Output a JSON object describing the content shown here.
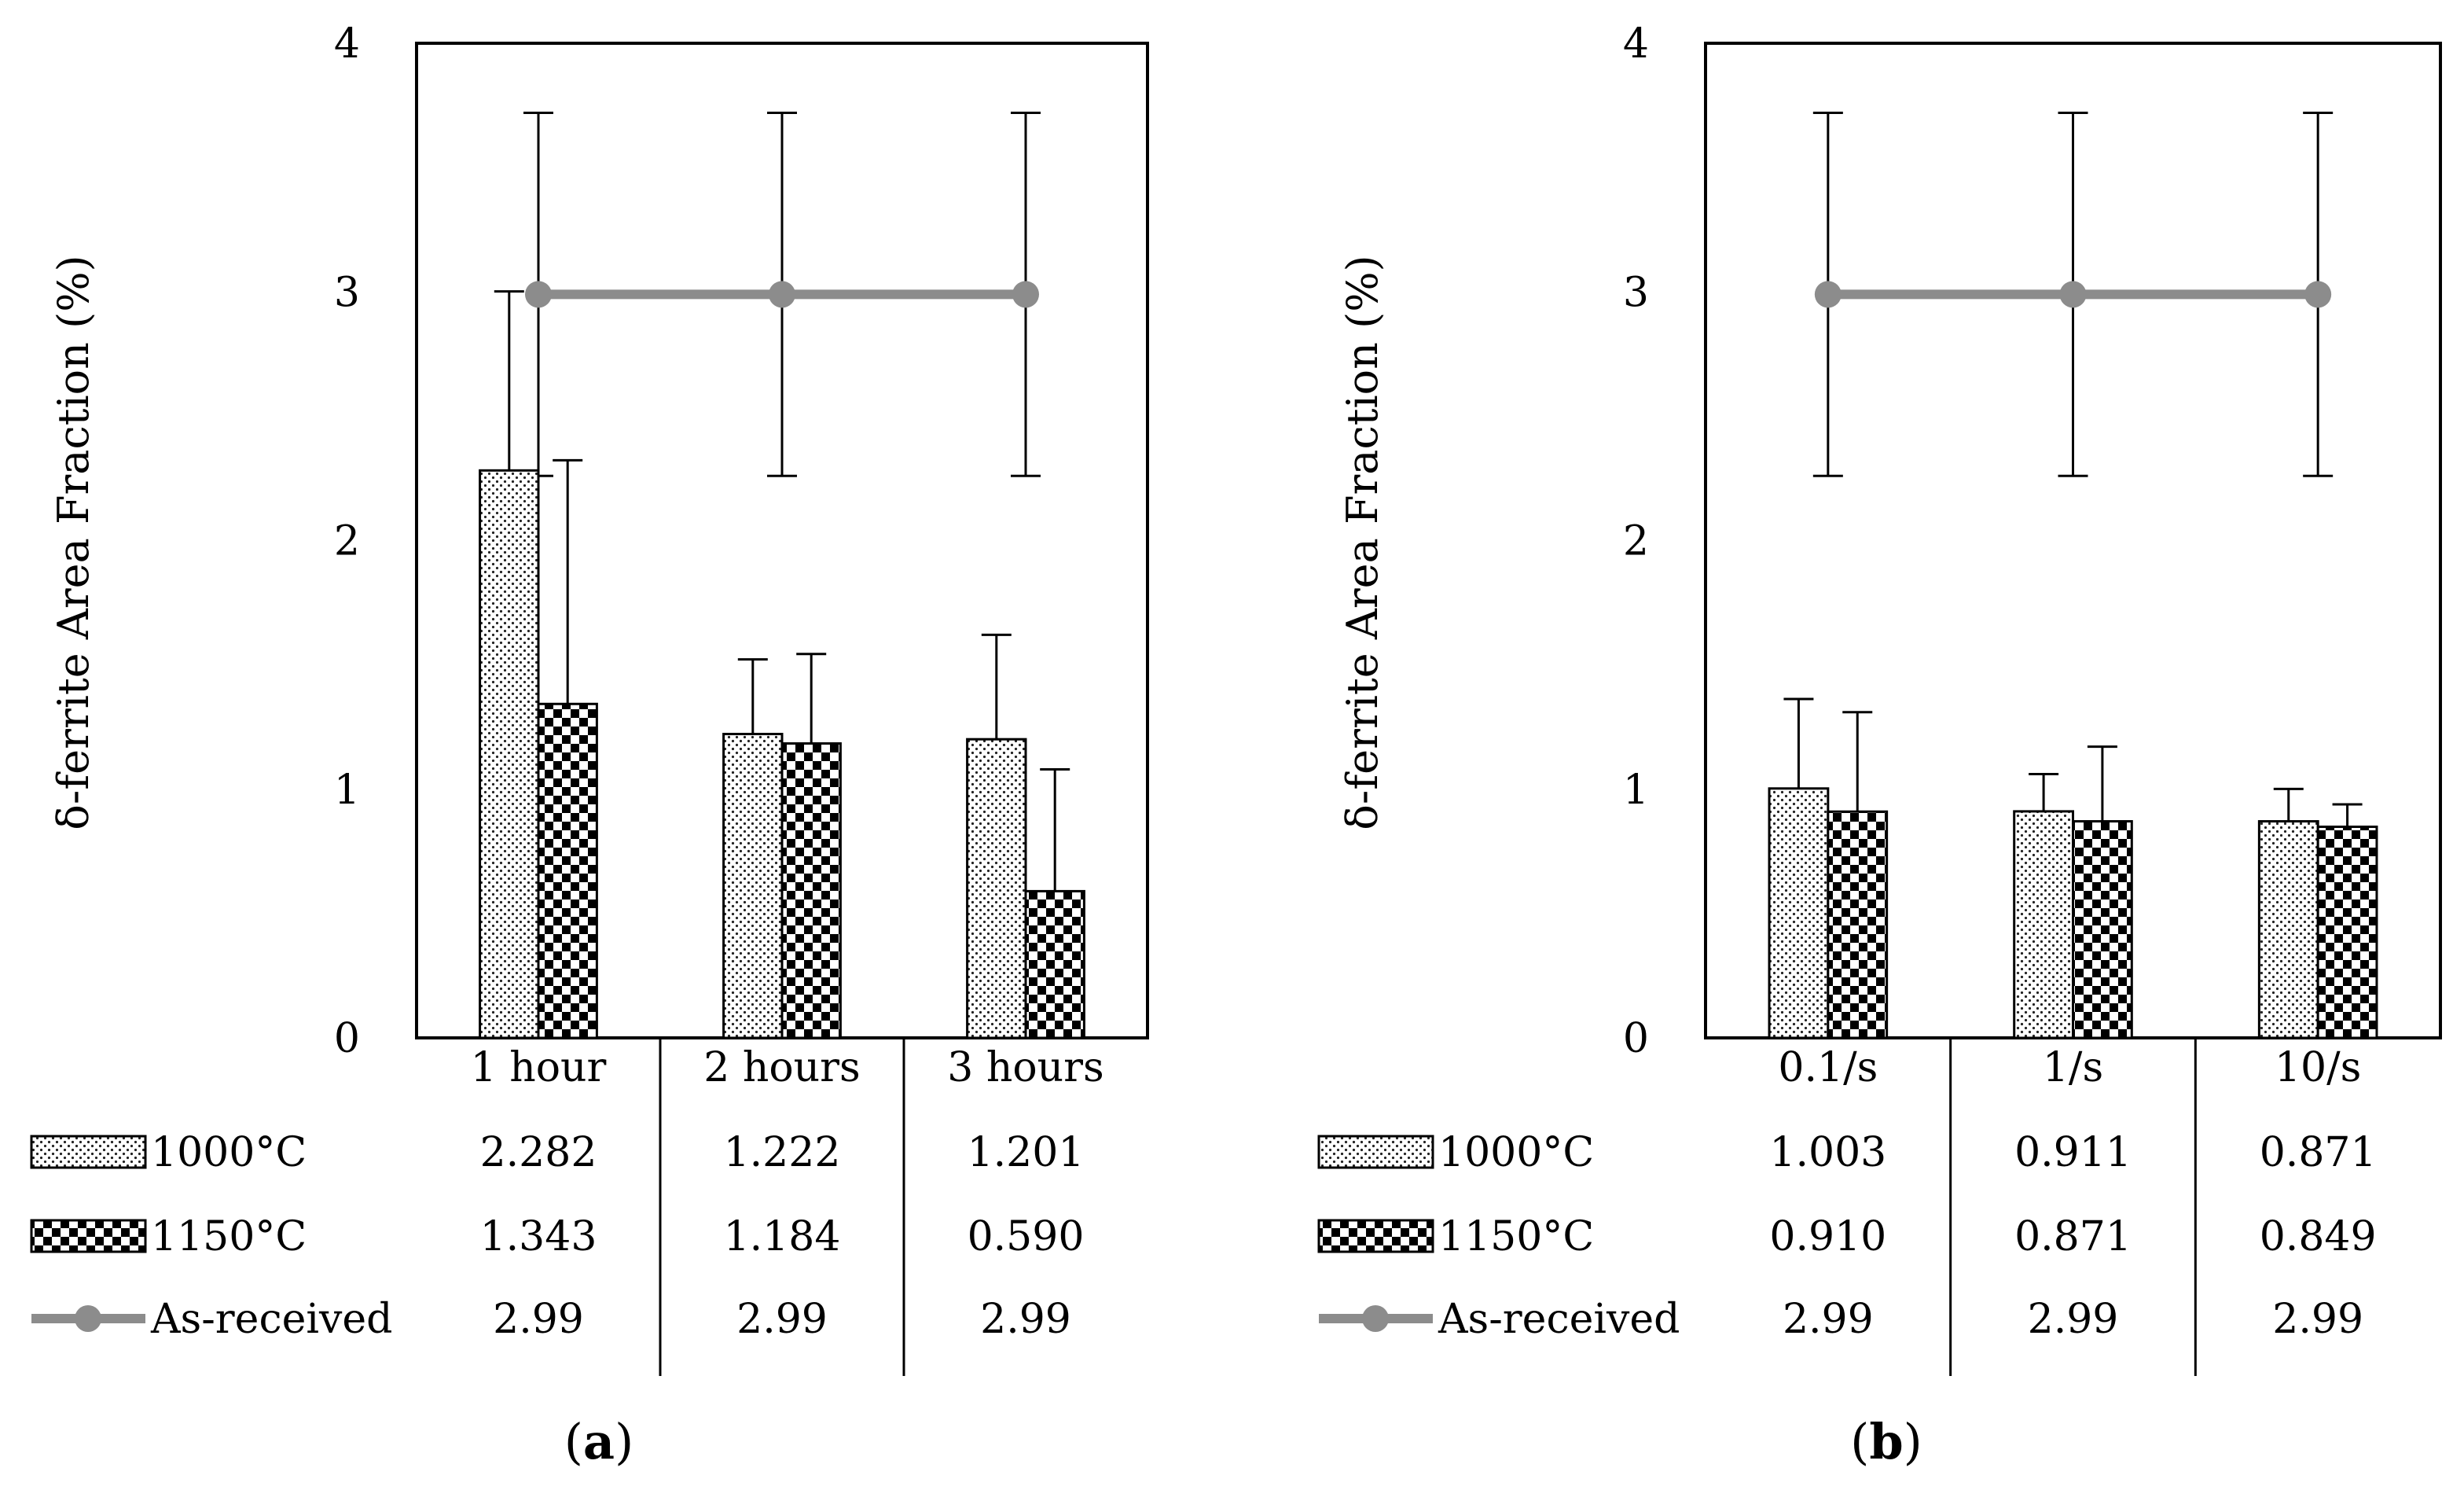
{
  "chart_data": [
    {
      "type": "bar",
      "panel_label": "a",
      "caption": {
        "open": "(",
        "label": "a",
        "close": ")"
      },
      "ylabel": "δ-ferrite Area Fraction (%)",
      "ylim": [
        0,
        4
      ],
      "yticks": [
        0,
        1,
        2,
        3,
        4
      ],
      "categories": [
        "1 hour",
        "2 hours",
        "3 hours"
      ],
      "series": [
        {
          "name": "1000°C",
          "kind": "bar",
          "pattern": "dots",
          "values": [
            2.282,
            1.222,
            1.201
          ],
          "labels": [
            "2.282",
            "1.222",
            "1.201"
          ],
          "error": [
            0.72,
            0.3,
            0.42
          ]
        },
        {
          "name": "1150°C",
          "kind": "bar",
          "pattern": "checker",
          "values": [
            1.343,
            1.184,
            0.59
          ],
          "labels": [
            "1.343",
            "1.184",
            "0.590"
          ],
          "error": [
            0.98,
            0.36,
            0.49
          ]
        },
        {
          "name": "As-received",
          "kind": "line",
          "color": "#8c8c8c",
          "values": [
            2.99,
            2.99,
            2.99
          ],
          "labels": [
            "2.99",
            "2.99",
            "2.99"
          ],
          "error": [
            0.73,
            0.73,
            0.73
          ]
        }
      ]
    },
    {
      "type": "bar",
      "panel_label": "b",
      "caption": {
        "open": "(",
        "label": "b",
        "close": ")"
      },
      "ylabel": "δ-ferrite Area Fraction (%)",
      "ylim": [
        0,
        4
      ],
      "yticks": [
        0,
        1,
        2,
        3,
        4
      ],
      "categories": [
        "0.1/s",
        "1/s",
        "10/s"
      ],
      "series": [
        {
          "name": "1000°C",
          "kind": "bar",
          "pattern": "dots",
          "values": [
            1.003,
            0.911,
            0.871
          ],
          "labels": [
            "1.003",
            "0.911",
            "0.871"
          ],
          "error": [
            0.36,
            0.15,
            0.13
          ]
        },
        {
          "name": "1150°C",
          "kind": "bar",
          "pattern": "checker",
          "values": [
            0.91,
            0.871,
            0.849
          ],
          "labels": [
            "0.910",
            "0.871",
            "0.849"
          ],
          "error": [
            0.4,
            0.3,
            0.09
          ]
        },
        {
          "name": "As-received",
          "kind": "line",
          "color": "#8c8c8c",
          "values": [
            2.99,
            2.99,
            2.99
          ],
          "labels": [
            "2.99",
            "2.99",
            "2.99"
          ],
          "error": [
            0.73,
            0.73,
            0.73
          ]
        }
      ]
    }
  ]
}
